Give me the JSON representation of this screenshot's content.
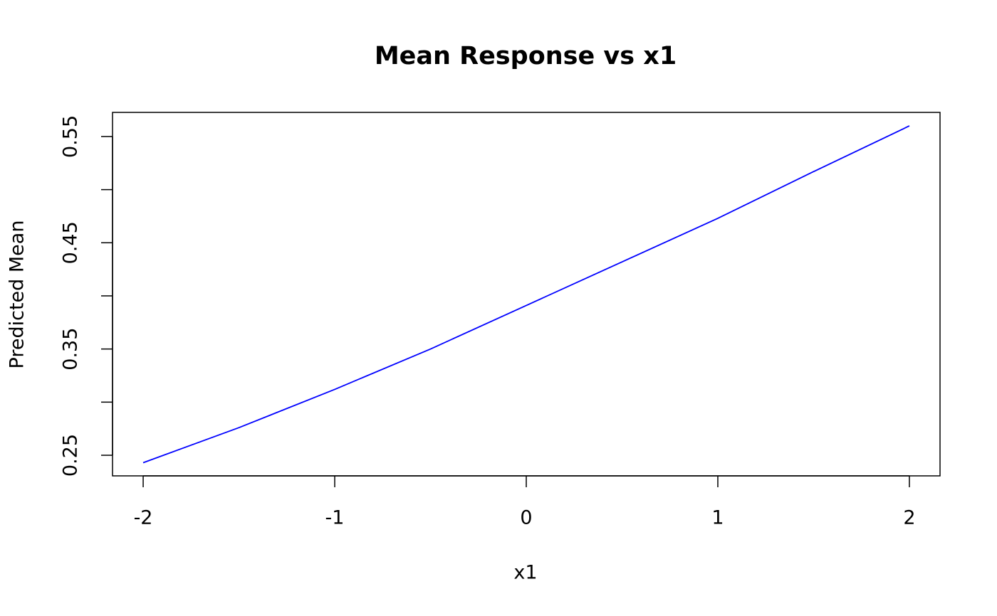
{
  "chart_data": {
    "type": "line",
    "title": "Mean Response vs x1",
    "x_label": "x1",
    "y_label": "Predicted Mean",
    "x": [
      -2,
      -1.5,
      -1,
      -0.5,
      0,
      0.5,
      1,
      1.5,
      2
    ],
    "series": [
      {
        "color": "#0000ff",
        "values": [
          0.243,
          0.276,
          0.312,
          0.35,
          0.391,
          0.432,
          0.473,
          0.517,
          0.56
        ]
      }
    ],
    "xlim": [
      -2.16,
      2.16
    ],
    "xticks": [
      -2,
      -1,
      0,
      1,
      2
    ],
    "ylim": [
      0.2306,
      0.5727
    ],
    "yticks": [
      0.25,
      0.35,
      0.45,
      0.55
    ],
    "yminor_ticks": [
      0.3,
      0.4,
      0.5
    ]
  }
}
